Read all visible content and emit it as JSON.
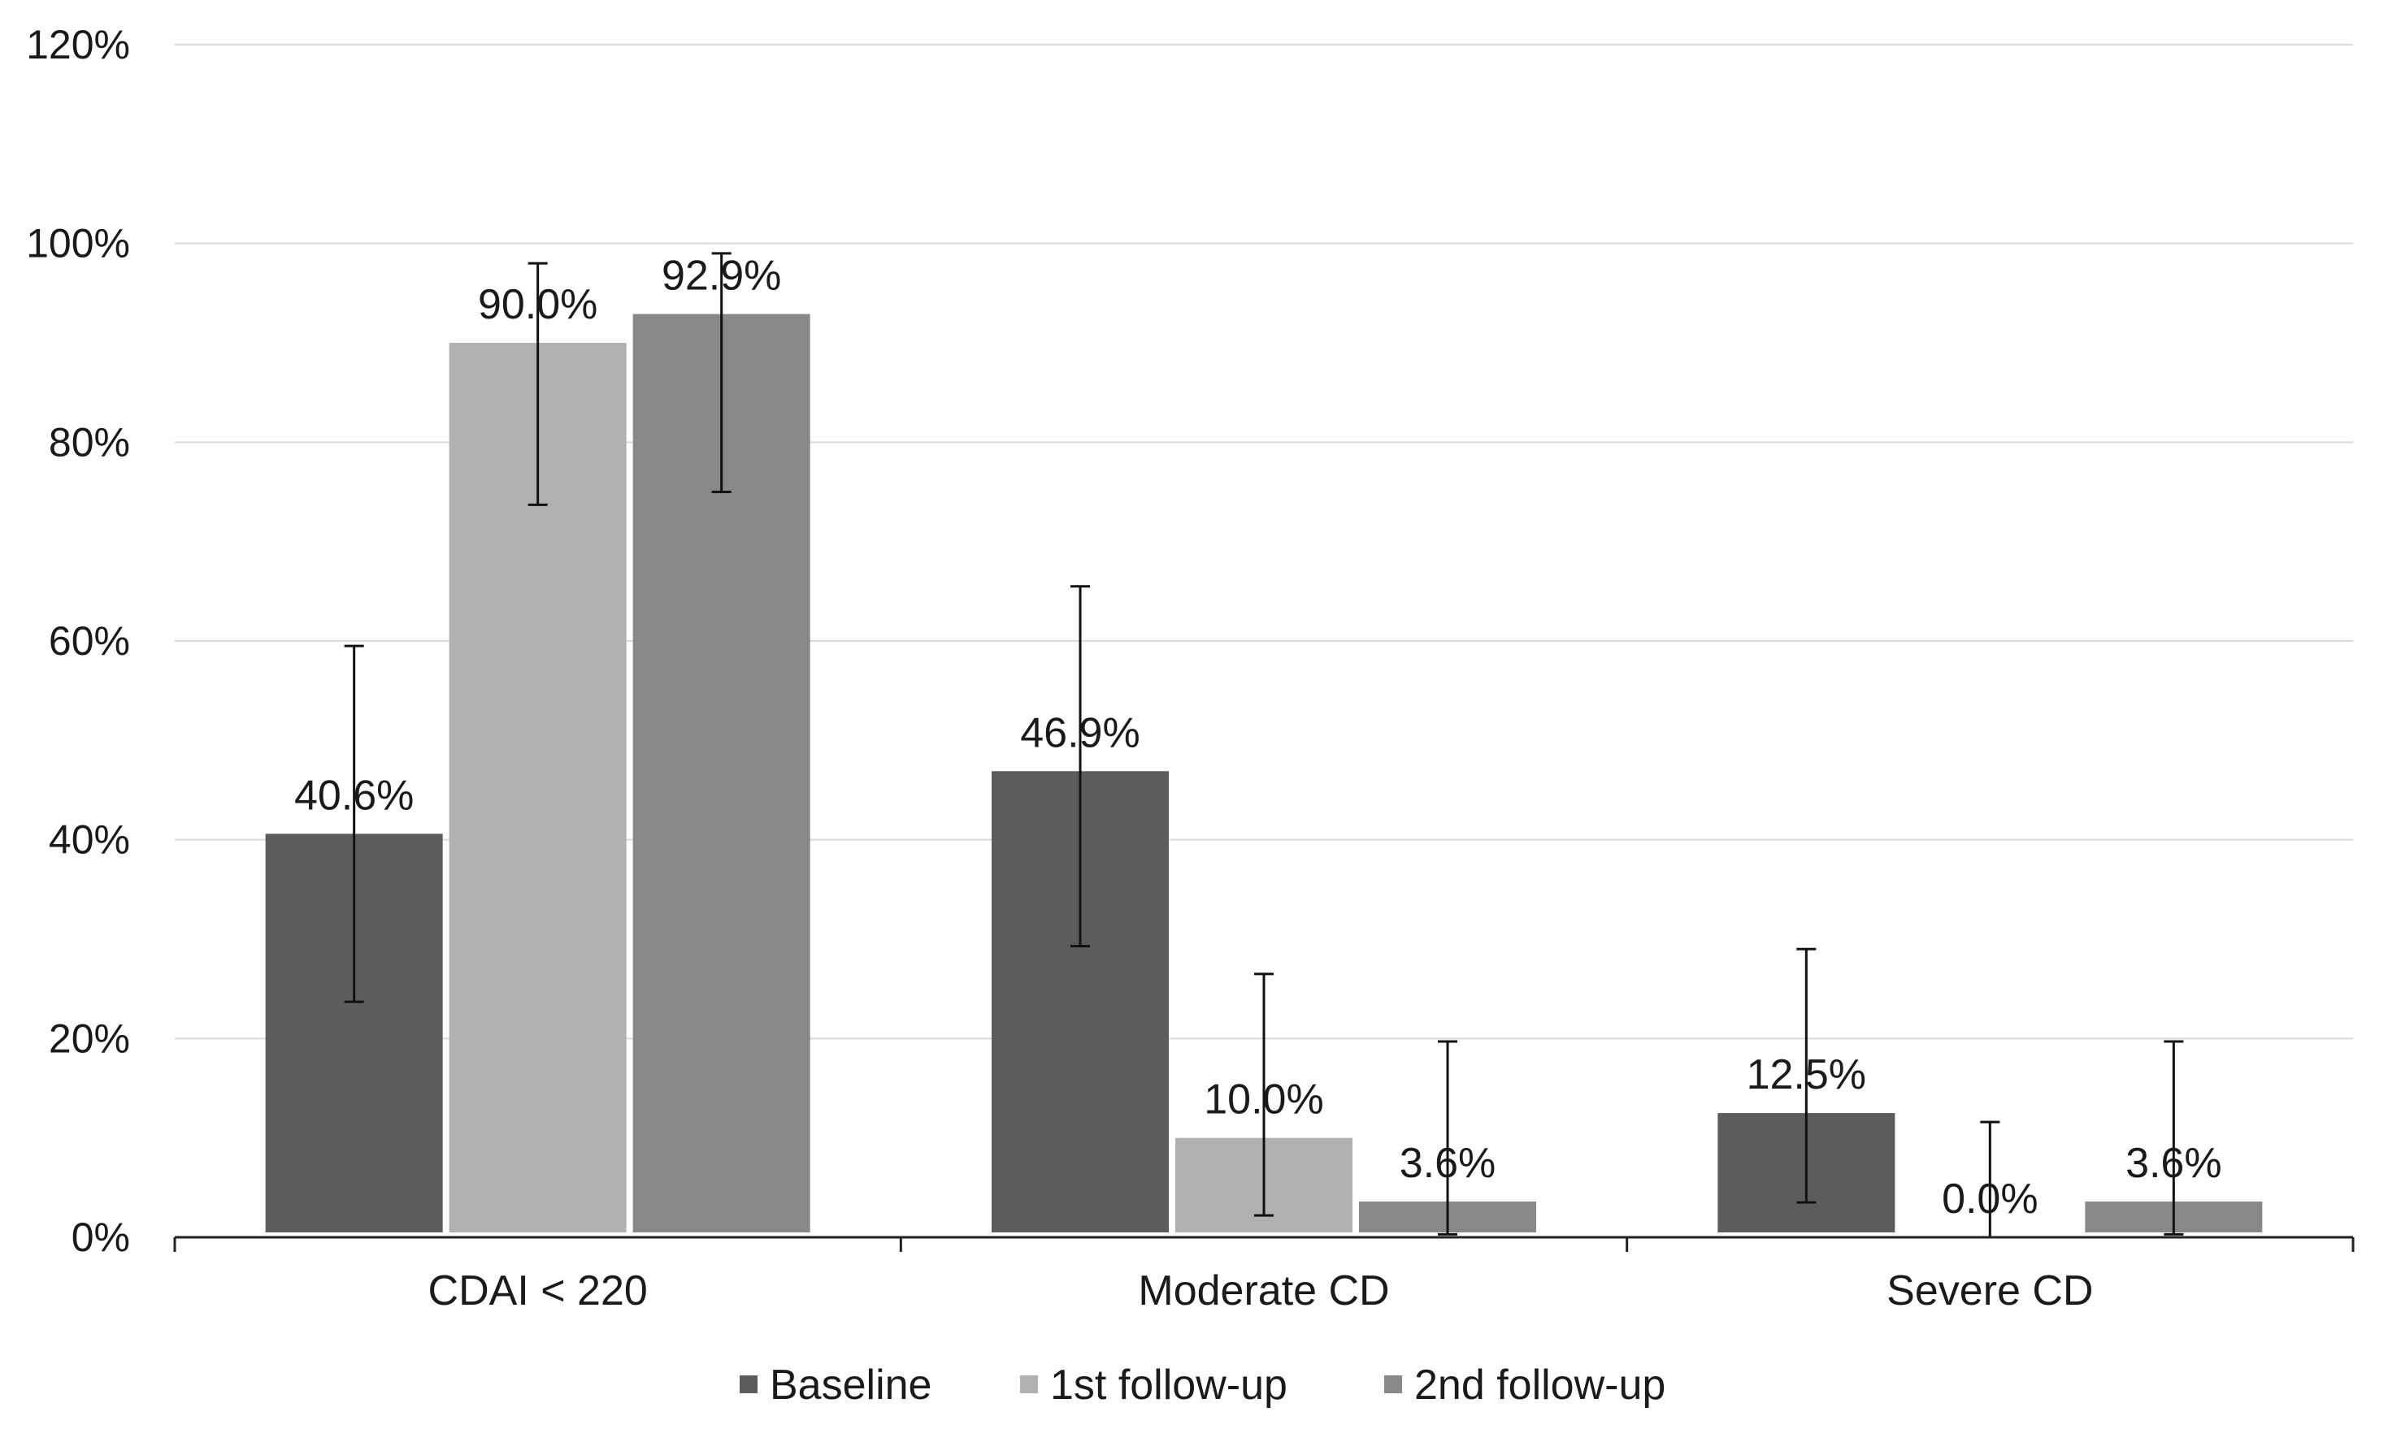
{
  "chart_data": {
    "type": "bar",
    "title": "",
    "xlabel": "",
    "ylabel": "",
    "ylim": [
      0,
      120
    ],
    "y_ticks": [
      0,
      20,
      40,
      60,
      80,
      100,
      120
    ],
    "y_tick_labels": [
      "0%",
      "20%",
      "40%",
      "60%",
      "80%",
      "100%",
      "120%"
    ],
    "grid": true,
    "legend_position": "bottom",
    "categories": [
      "CDAI < 220",
      "Moderate CD",
      "Severe CD"
    ],
    "series": [
      {
        "name": "Baseline",
        "color": "#5c5c5c",
        "values": [
          40.6,
          46.9,
          12.5
        ],
        "labels": [
          "40.6%",
          "46.9%",
          "12.5%"
        ],
        "error_low": [
          23.7,
          29.3,
          3.5
        ],
        "error_high": [
          59.5,
          65.5,
          29.0
        ]
      },
      {
        "name": "1st follow-up",
        "color": "#b1b1b1",
        "values": [
          90.0,
          10.0,
          0.0
        ],
        "labels": [
          "90.0%",
          "10.0%",
          "0.0%"
        ],
        "error_low": [
          73.7,
          2.2,
          0.0
        ],
        "error_high": [
          98.0,
          26.5,
          11.6
        ]
      },
      {
        "name": "2nd follow-up",
        "color": "#888888",
        "values": [
          92.9,
          3.6,
          3.6
        ],
        "labels": [
          "92.9%",
          "3.6%",
          "3.6%"
        ],
        "error_low": [
          75.0,
          0.3,
          0.3
        ],
        "error_high": [
          99.0,
          19.7,
          19.7
        ]
      }
    ]
  }
}
